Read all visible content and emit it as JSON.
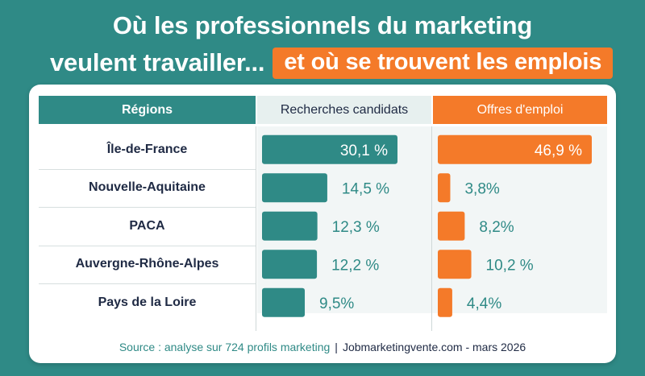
{
  "title": {
    "line1": "Où les professionnels du marketing",
    "line2_plain": "veulent travailler...",
    "line2_highlight": "et où se trouvent les emplois"
  },
  "table": {
    "col_regions": "Régions",
    "col_candidates": "Recherches candidats",
    "col_offers": "Offres d'emploi"
  },
  "chart_data": {
    "type": "bar",
    "categories": [
      "Île-de-France",
      "Nouvelle-Aquitaine",
      "PACA",
      "Auvergne-Rhône-Alpes",
      "Pays de la Loire"
    ],
    "series": [
      {
        "name": "Recherches candidats",
        "values": [
          30.1,
          14.5,
          12.3,
          12.2,
          9.5
        ],
        "labels": [
          "30,1 %",
          "14,5 %",
          "12,3 %",
          "12,2 %",
          "9,5%"
        ],
        "color": "#2f8a86"
      },
      {
        "name": "Offres d'emploi",
        "values": [
          46.9,
          3.8,
          8.2,
          10.2,
          4.4
        ],
        "labels": [
          "46,9 %",
          "3,8%",
          "8,2%",
          "10,2 %",
          "4,4%"
        ],
        "color": "#f47a29"
      }
    ],
    "label_color_inside": "#ffffff",
    "label_color_cand": "#2f8a86",
    "label_color_offer": "#2f8a86"
  },
  "footer": {
    "source": "Source : analyse sur 724 profils marketing",
    "separator": "|",
    "domain": "Jobmarketingvente.com - mars 2026"
  }
}
